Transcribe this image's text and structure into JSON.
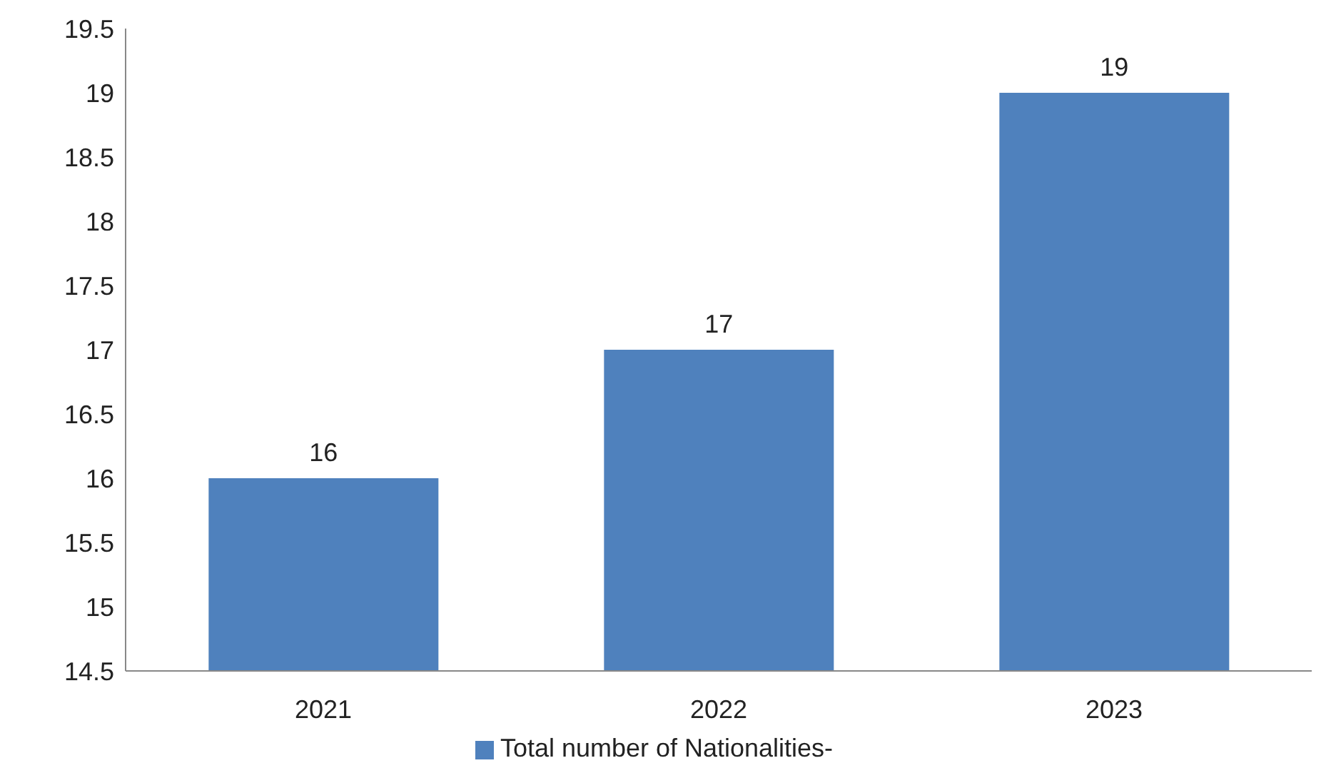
{
  "chart_data": {
    "type": "bar",
    "categories": [
      "2021",
      "2022",
      "2023"
    ],
    "series": [
      {
        "name": "Total number of Nationalities-",
        "color": "#4f81bd",
        "values": [
          16,
          17,
          19
        ]
      }
    ],
    "ylim": [
      14.5,
      19.5
    ],
    "yticks": [
      14.5,
      15,
      15.5,
      16,
      16.5,
      17,
      17.5,
      18,
      18.5,
      19,
      19.5
    ],
    "data_labels": true,
    "legend": "bottom",
    "grid": false
  }
}
